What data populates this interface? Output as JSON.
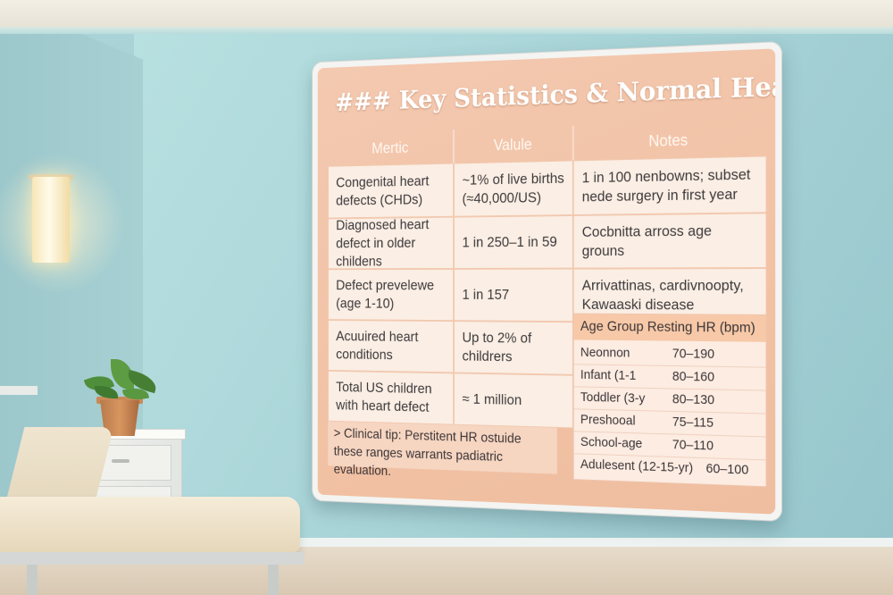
{
  "board": {
    "title": "### Key Statistics & Normal Heart Rates",
    "columns": [
      "Mertic",
      "Valule",
      "Notes"
    ],
    "rows": [
      {
        "metric": "Congenital heart defects (CHDs)",
        "value": "~1% of live births (≈40,000/US)",
        "notes": "1 in 100 nenbowns; subset nede surgery in first year"
      },
      {
        "metric": "Diagnosed heart defect in older childens",
        "value": "1 in 250–1 in 59",
        "notes": "Cocbnitta arross age grouns"
      },
      {
        "metric": "Defect prevelewe (age 1-10)",
        "value": "1 in 157",
        "notes": "Arrivattinas, cardivnoopty, Kawaaski disease"
      },
      {
        "metric": "Acuuired heart conditions",
        "value": "Up to 2% of childrers"
      },
      {
        "metric": "Total US children with heart defect",
        "value": "≈ 1 million"
      }
    ],
    "hr_table": {
      "header": "Age Group Resting HR (bpm)",
      "rows": [
        {
          "age": "Neonnon",
          "hr": "70–190"
        },
        {
          "age": "Infant (1-1",
          "hr": "80–160"
        },
        {
          "age": "Toddler (3-y",
          "hr": "80–130"
        },
        {
          "age": "Preshooal",
          "hr": "75–115"
        },
        {
          "age": "School-age",
          "hr": "70–110"
        },
        {
          "age": "Adulesent (12-15-yr)",
          "hr": "60–100"
        }
      ]
    },
    "tip": "> Clinical tip: Perstitent HR ostuide these ranges warrants padiatric evaluation."
  }
}
